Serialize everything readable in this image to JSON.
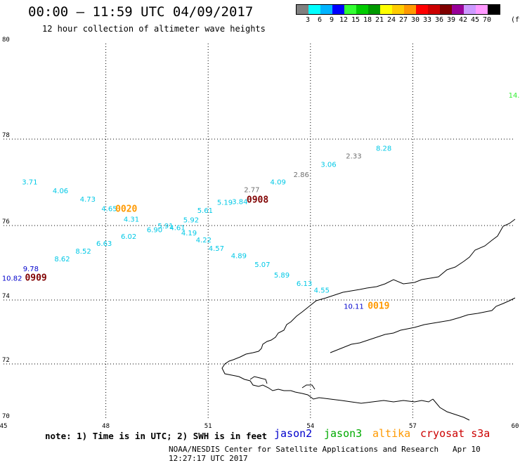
{
  "header": {
    "title": "00:00 – 11:59 UTC 04/09/2017",
    "subtitle": "12 hour collection of altimeter wave heights"
  },
  "legend": {
    "colors": [
      "#808080",
      "#00ffff",
      "#00b4ff",
      "#0000ff",
      "#33ff33",
      "#00cc00",
      "#009900",
      "#ffff00",
      "#ffcc00",
      "#ff9900",
      "#ff0000",
      "#cc0000",
      "#800000",
      "#990099",
      "#cc99ff",
      "#ff99ff",
      "#000000"
    ],
    "labels": [
      "3",
      "6",
      "9",
      "12",
      "15",
      "18",
      "21",
      "24",
      "27",
      "30",
      "33",
      "36",
      "39",
      "42",
      "45",
      "70"
    ],
    "unit": "(ft)"
  },
  "axes": {
    "y_ticks": [
      "80",
      "78",
      "76",
      "74",
      "72",
      "70"
    ],
    "x_ticks": [
      "45",
      "48",
      "51",
      "54",
      "57",
      "60"
    ]
  },
  "observations": [
    {
      "text": "3.71",
      "lon": 45.77,
      "lat": 76.95,
      "color": "#00c8e6"
    },
    {
      "text": "4.06",
      "lon": 46.67,
      "lat": 76.75,
      "color": "#00c8e6"
    },
    {
      "text": "4.73",
      "lon": 47.47,
      "lat": 76.55,
      "color": "#00c8e6"
    },
    {
      "text": "4.65",
      "lon": 48.1,
      "lat": 76.33,
      "color": "#00c8e6"
    },
    {
      "text": "4.31",
      "lon": 48.75,
      "lat": 76.09,
      "color": "#00c8e6"
    },
    {
      "text": "4.61",
      "lon": 50.1,
      "lat": 75.88,
      "color": "#00c8e6"
    },
    {
      "text": "5.91",
      "lon": 49.75,
      "lat": 75.92,
      "color": "#00c8e6"
    },
    {
      "text": "5.92",
      "lon": 50.5,
      "lat": 76.07,
      "color": "#00c8e6"
    },
    {
      "text": "5.61",
      "lon": 50.91,
      "lat": 76.29,
      "color": "#00c8e6"
    },
    {
      "text": "5.19",
      "lon": 51.49,
      "lat": 76.48,
      "color": "#00c8e6"
    },
    {
      "text": "3.84",
      "lon": 51.93,
      "lat": 76.5,
      "color": "#00c8e6"
    },
    {
      "text": "4.09",
      "lon": 53.05,
      "lat": 76.95,
      "color": "#00c8e6"
    },
    {
      "text": "3.06",
      "lon": 54.53,
      "lat": 77.36,
      "color": "#00c8e6"
    },
    {
      "text": "8.28",
      "lon": 56.15,
      "lat": 77.73,
      "color": "#00c8e6"
    },
    {
      "text": "6.90",
      "lon": 49.43,
      "lat": 75.82,
      "color": "#00c8e6"
    },
    {
      "text": "6.02",
      "lon": 48.67,
      "lat": 75.64,
      "color": "#00c8e6"
    },
    {
      "text": "6.63",
      "lon": 47.95,
      "lat": 75.45,
      "color": "#00c8e6"
    },
    {
      "text": "8.52",
      "lon": 47.34,
      "lat": 75.25,
      "color": "#00c8e6"
    },
    {
      "text": "8.62",
      "lon": 46.72,
      "lat": 75.04,
      "color": "#00c8e6"
    },
    {
      "text": "4.19",
      "lon": 50.44,
      "lat": 75.74,
      "color": "#00c8e6"
    },
    {
      "text": "4.22",
      "lon": 50.87,
      "lat": 75.55,
      "color": "#00c8e6"
    },
    {
      "text": "4.57",
      "lon": 51.24,
      "lat": 75.32,
      "color": "#00c8e6"
    },
    {
      "text": "4.89",
      "lon": 51.9,
      "lat": 75.12,
      "color": "#00c8e6"
    },
    {
      "text": "5.07",
      "lon": 52.59,
      "lat": 74.89,
      "color": "#00c8e6"
    },
    {
      "text": "5.89",
      "lon": 53.16,
      "lat": 74.6,
      "color": "#00c8e6"
    },
    {
      "text": "6.13",
      "lon": 53.82,
      "lat": 74.38,
      "color": "#00c8e6"
    },
    {
      "text": "4.55",
      "lon": 54.33,
      "lat": 74.2,
      "color": "#00c8e6"
    },
    {
      "text": "9.78",
      "lon": 45.8,
      "lat": 74.77,
      "color": "#0000cc"
    },
    {
      "text": "10.82",
      "lon": 45.25,
      "lat": 74.52,
      "color": "#0000cc"
    },
    {
      "text": "10.11",
      "lon": 55.27,
      "lat": 73.72,
      "color": "#0000cc"
    },
    {
      "text": "2.77",
      "lon": 52.28,
      "lat": 76.77,
      "color": "#707070"
    },
    {
      "text": "2.86",
      "lon": 53.73,
      "lat": 77.12,
      "color": "#707070"
    },
    {
      "text": "2.33",
      "lon": 55.27,
      "lat": 77.55,
      "color": "#707070"
    },
    {
      "text": "14.",
      "lon": 59.97,
      "lat": 78.87,
      "color": "#33ee33"
    }
  ],
  "time_labels": [
    {
      "text": "0020",
      "lon": 48.6,
      "lat": 76.32,
      "color": "#ff9900"
    },
    {
      "text": "0908",
      "lon": 52.45,
      "lat": 76.53,
      "color": "#800000"
    },
    {
      "text": "0909",
      "lon": 45.95,
      "lat": 74.52,
      "color": "#800000"
    },
    {
      "text": "0019",
      "lon": 56.0,
      "lat": 73.72,
      "color": "#ff9900"
    }
  ],
  "footer": {
    "note": "note: 1) Time is in UTC; 2) SWH is in feet",
    "satellites": [
      {
        "name": "jason2",
        "color": "#0000cc"
      },
      {
        "name": "jason3",
        "color": "#00aa00"
      },
      {
        "name": "altika",
        "color": "#ff9900"
      },
      {
        "name": "cryosat s3a",
        "color": "#cc0000"
      }
    ],
    "credit": "NOAA/NESDIS Center for Satellite Applications and Research",
    "timestamp": "Apr 10 12:27:17 UTC 2017"
  }
}
